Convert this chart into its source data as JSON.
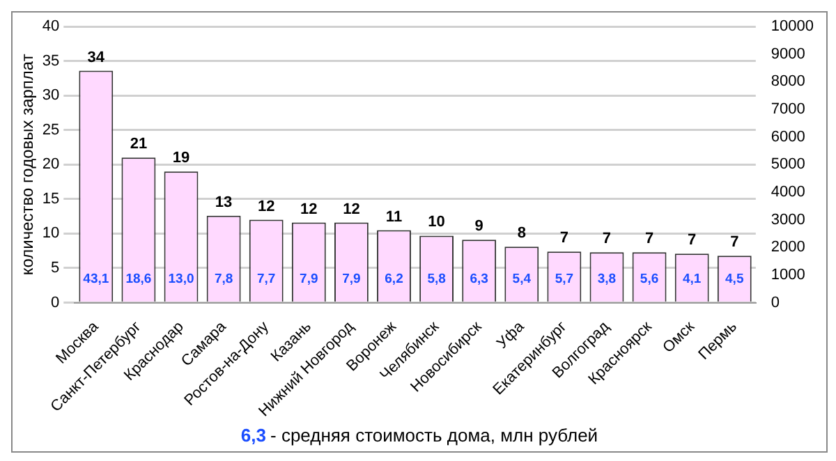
{
  "chart_data": {
    "type": "bar",
    "ylabel": "количество годовых зарплат",
    "categories": [
      "Москва",
      "Санкт-Петербург",
      "Краснодар",
      "Самара",
      "Ростов-на-Дону",
      "Казань",
      "Нижний Новгород",
      "Воронеж",
      "Челябинск",
      "Новосибирск",
      "Уфа",
      "Екатеринбург",
      "Волгоград",
      "Красноярск",
      "Омск",
      "Пермь"
    ],
    "values": [
      33.6,
      21.0,
      19.0,
      12.6,
      12.0,
      11.6,
      11.6,
      10.5,
      9.7,
      9.1,
      8.1,
      7.4,
      7.3,
      7.3,
      7.1,
      6.8
    ],
    "value_labels": [
      "34",
      "21",
      "19",
      "13",
      "12",
      "12",
      "12",
      "11",
      "10",
      "9",
      "8",
      "7",
      "7",
      "7",
      "7",
      "7"
    ],
    "color": "#ffd9ff",
    "ylim": [
      0,
      40
    ],
    "yticks": [
      0,
      5,
      10,
      15,
      20,
      25,
      30,
      35,
      40
    ],
    "y2lim": [
      0,
      10000
    ],
    "y2ticks": [
      0,
      1000,
      2000,
      3000,
      4000,
      5000,
      6000,
      7000,
      8000,
      9000,
      10000
    ],
    "grid": "y",
    "legend": false,
    "annotations": [
      "43,1",
      "18,6",
      "13,0",
      "7,8",
      "7,7",
      "7,9",
      "7,9",
      "6,2",
      "5,8",
      "6,3",
      "5,4",
      "5,7",
      "3,8",
      "5,6",
      "4,1",
      "4,5",
      "6,3",
      "- средняя стоимость дома, млн рублей"
    ]
  }
}
